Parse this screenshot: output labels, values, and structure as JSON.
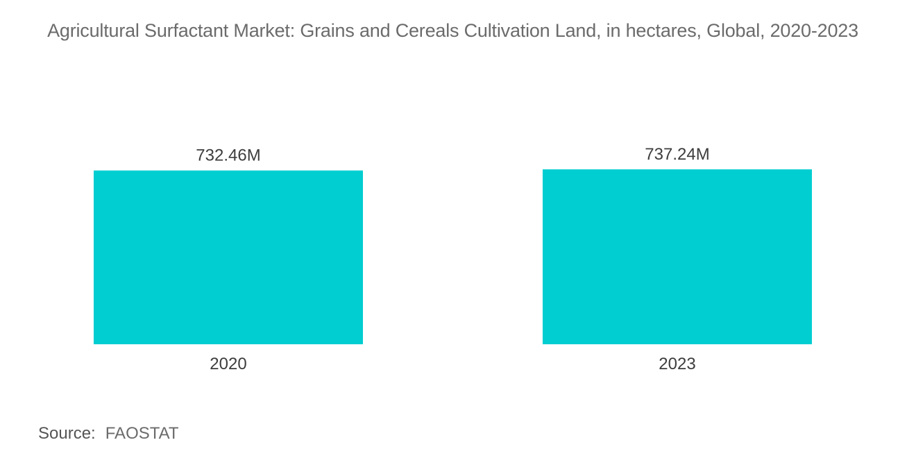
{
  "chart_data": {
    "type": "bar",
    "title": "Agricultural Surfactant Market: Grains and Cereals Cultivation Land, in hectares, Global, 2020-2023",
    "categories": [
      "2020",
      "2023"
    ],
    "values": [
      732.46,
      737.24
    ],
    "data_labels": [
      "732.46M",
      "737.24M"
    ],
    "unit": "M",
    "xlabel": "",
    "ylabel": "",
    "ylim": [
      0,
      737.24
    ],
    "grid": false,
    "legend": "none",
    "bar_color": "#00CED1"
  },
  "source": {
    "label": "Source:",
    "value": "FAOSTAT"
  }
}
